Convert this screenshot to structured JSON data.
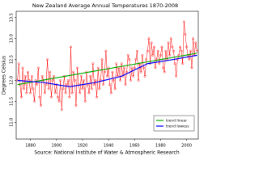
{
  "chart_data": {
    "type": "line",
    "title": "New Zealand Average Annual Temperatures 1870-2008",
    "y_label": "Degrees Celsius",
    "x_label": "Source: National Institute of Water & Atmospheric Research",
    "x": [
      1870,
      1871,
      1872,
      1873,
      1874,
      1875,
      1876,
      1877,
      1878,
      1879,
      1880,
      1881,
      1882,
      1883,
      1884,
      1885,
      1886,
      1887,
      1888,
      1889,
      1890,
      1891,
      1892,
      1893,
      1894,
      1895,
      1896,
      1897,
      1898,
      1899,
      1900,
      1901,
      1902,
      1903,
      1904,
      1905,
      1906,
      1907,
      1908,
      1909,
      1910,
      1911,
      1912,
      1913,
      1914,
      1915,
      1916,
      1917,
      1918,
      1919,
      1920,
      1921,
      1922,
      1923,
      1924,
      1925,
      1926,
      1927,
      1928,
      1929,
      1930,
      1931,
      1932,
      1933,
      1934,
      1935,
      1936,
      1937,
      1938,
      1939,
      1940,
      1941,
      1942,
      1943,
      1944,
      1945,
      1946,
      1947,
      1948,
      1949,
      1950,
      1951,
      1952,
      1953,
      1954,
      1955,
      1956,
      1957,
      1958,
      1959,
      1960,
      1961,
      1962,
      1963,
      1964,
      1965,
      1966,
      1967,
      1968,
      1969,
      1970,
      1971,
      1972,
      1973,
      1974,
      1975,
      1976,
      1977,
      1978,
      1979,
      1980,
      1981,
      1982,
      1983,
      1984,
      1985,
      1986,
      1987,
      1988,
      1989,
      1990,
      1991,
      1992,
      1993,
      1994,
      1995,
      1996,
      1997,
      1998,
      1999,
      2000,
      2001,
      2002,
      2003,
      2004,
      2005,
      2006,
      2007,
      2008
    ],
    "series": [
      {
        "color": "#ff0000",
        "values": [
          12.0,
          12.4,
          11.9,
          11.6,
          12.3,
          11.8,
          12.1,
          11.7,
          12.2,
          12.0,
          11.7,
          12.1,
          11.8,
          11.5,
          12.0,
          11.9,
          12.3,
          11.6,
          11.4,
          12.1,
          12.0,
          11.7,
          11.9,
          12.5,
          11.8,
          12.2,
          11.6,
          12.0,
          12.1,
          11.7,
          11.9,
          11.6,
          11.5,
          12.0,
          11.3,
          11.8,
          12.1,
          11.7,
          11.9,
          12.0,
          11.6,
          12.8,
          11.7,
          12.2,
          12.0,
          11.4,
          12.3,
          11.9,
          11.7,
          12.1,
          11.8,
          12.0,
          11.5,
          12.2,
          11.9,
          11.7,
          12.1,
          11.8,
          12.4,
          11.9,
          12.0,
          11.6,
          12.3,
          11.8,
          12.0,
          12.5,
          11.9,
          12.2,
          12.7,
          12.1,
          12.3,
          11.9,
          11.7,
          12.2,
          12.0,
          11.8,
          12.4,
          12.1,
          12.3,
          12.0,
          12.4,
          12.1,
          12.3,
          11.9,
          12.2,
          12.6,
          12.5,
          12.0,
          12.3,
          12.1,
          12.3,
          12.5,
          12.7,
          12.0,
          12.4,
          12.2,
          12.6,
          12.3,
          12.1,
          12.5,
          12.7,
          13.0,
          12.4,
          12.9,
          12.6,
          12.8,
          12.3,
          12.5,
          12.7,
          12.4,
          12.6,
          12.8,
          12.3,
          12.2,
          12.7,
          12.5,
          12.9,
          12.6,
          13.0,
          12.8,
          12.7,
          12.4,
          12.1,
          12.5,
          12.6,
          12.8,
          12.7,
          12.4,
          13.4,
          13.1,
          12.8,
          12.6,
          12.5,
          12.7,
          12.3,
          13.0,
          12.6,
          12.9,
          12.7
        ]
      },
      {
        "name": "trend linear",
        "color": "#00aa00",
        "x": [
          1870,
          2008
        ],
        "values": [
          11.9,
          12.65
        ]
      },
      {
        "name": "trend lowess",
        "color": "#0000ff",
        "x": [
          1870,
          1890,
          1910,
          1930,
          1950,
          1970,
          1990,
          2008
        ],
        "values": [
          12.0,
          11.95,
          11.85,
          11.95,
          12.1,
          12.4,
          12.5,
          12.6
        ]
      }
    ],
    "xlim": [
      1869,
      2009
    ],
    "xticks": [
      1880,
      1900,
      1920,
      1940,
      1960,
      1980,
      2000
    ],
    "ylim": [
      10.6,
      13.65
    ],
    "yticks": [
      {
        "value": 11,
        "label": "11.0"
      },
      {
        "value": 11.5,
        "label": "11.5"
      },
      {
        "value": 12,
        "label": "12.0"
      },
      {
        "value": 12.5,
        "label": "12.5"
      },
      {
        "value": 13,
        "label": "13.0"
      },
      {
        "value": 13.5,
        "label": "13.5"
      }
    ],
    "legend": "lower right"
  }
}
